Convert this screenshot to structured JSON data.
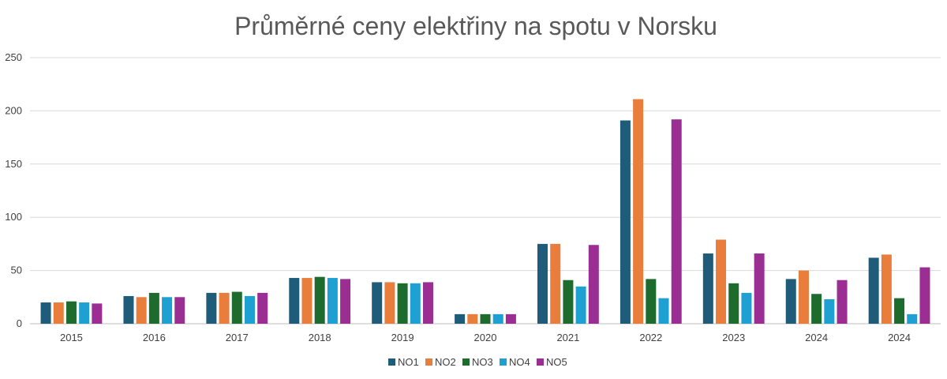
{
  "chart_data": {
    "type": "bar",
    "title": "Průměrné ceny elektřiny na spotu v Norsku",
    "xlabel": "",
    "ylabel": "",
    "ylim": [
      0,
      250
    ],
    "yticks": [
      0,
      50,
      100,
      150,
      200,
      250
    ],
    "grid": true,
    "legend_position": "bottom",
    "categories": [
      "2015",
      "2016",
      "2017",
      "2018",
      "2019",
      "2020",
      "2021",
      "2022",
      "2023",
      "2024",
      "2024"
    ],
    "series": [
      {
        "name": "NO1",
        "color": "#1f5c7a",
        "values": [
          20,
          26,
          29,
          43,
          39,
          9,
          75,
          191,
          66,
          42,
          62
        ]
      },
      {
        "name": "NO2",
        "color": "#e97d3b",
        "values": [
          20,
          25,
          29,
          43,
          39,
          9,
          75,
          211,
          79,
          50,
          65
        ]
      },
      {
        "name": "NO3",
        "color": "#1e6b2e",
        "values": [
          21,
          29,
          30,
          44,
          38,
          9,
          41,
          42,
          38,
          28,
          24
        ]
      },
      {
        "name": "NO4",
        "color": "#1fa0d3",
        "values": [
          20,
          25,
          26,
          43,
          38,
          9,
          35,
          24,
          29,
          23,
          9
        ]
      },
      {
        "name": "NO5",
        "color": "#9b2e93",
        "values": [
          19,
          25,
          29,
          42,
          39,
          9,
          74,
          192,
          66,
          41,
          53
        ]
      }
    ]
  }
}
